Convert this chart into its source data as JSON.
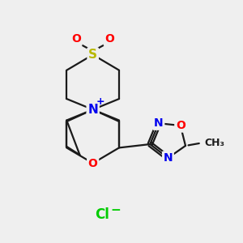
{
  "background_color": "#efefef",
  "bond_color": "#1a1a1a",
  "S_color": "#b8b800",
  "O_color": "#ff0000",
  "N_color": "#0000ee",
  "Cl_color": "#00cc00",
  "font_size": 10,
  "small_font_size": 8,
  "figsize": [
    3.0,
    3.0
  ],
  "dpi": 100,
  "xlim": [
    0,
    10
  ],
  "ylim": [
    0,
    10
  ]
}
